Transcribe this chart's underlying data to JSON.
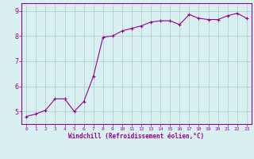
{
  "x": [
    0,
    1,
    2,
    3,
    4,
    5,
    6,
    7,
    8,
    9,
    10,
    11,
    12,
    13,
    14,
    15,
    16,
    17,
    18,
    19,
    20,
    21,
    22,
    23
  ],
  "y": [
    4.8,
    4.9,
    5.05,
    5.5,
    5.5,
    5.0,
    5.4,
    6.4,
    7.95,
    8.0,
    8.2,
    8.3,
    8.4,
    8.55,
    8.6,
    8.6,
    8.45,
    8.85,
    8.7,
    8.65,
    8.65,
    8.8,
    8.9,
    8.7
  ],
  "line_color": "#990099",
  "marker": "+",
  "marker_size": 3,
  "bg_color": "#d8f0f0",
  "grid_color": "#aacccc",
  "xlabel": "Windchill (Refroidissement éolien,°C)",
  "xlabel_color": "#990099",
  "tick_color": "#990099",
  "xlim": [
    -0.5,
    23.5
  ],
  "ylim": [
    4.5,
    9.3
  ],
  "yticks": [
    5,
    6,
    7,
    8,
    9
  ],
  "xticks": [
    0,
    1,
    2,
    3,
    4,
    5,
    6,
    7,
    8,
    9,
    10,
    11,
    12,
    13,
    14,
    15,
    16,
    17,
    18,
    19,
    20,
    21,
    22,
    23
  ],
  "spine_color": "#990099",
  "line_width": 0.8,
  "font_family": "monospace"
}
